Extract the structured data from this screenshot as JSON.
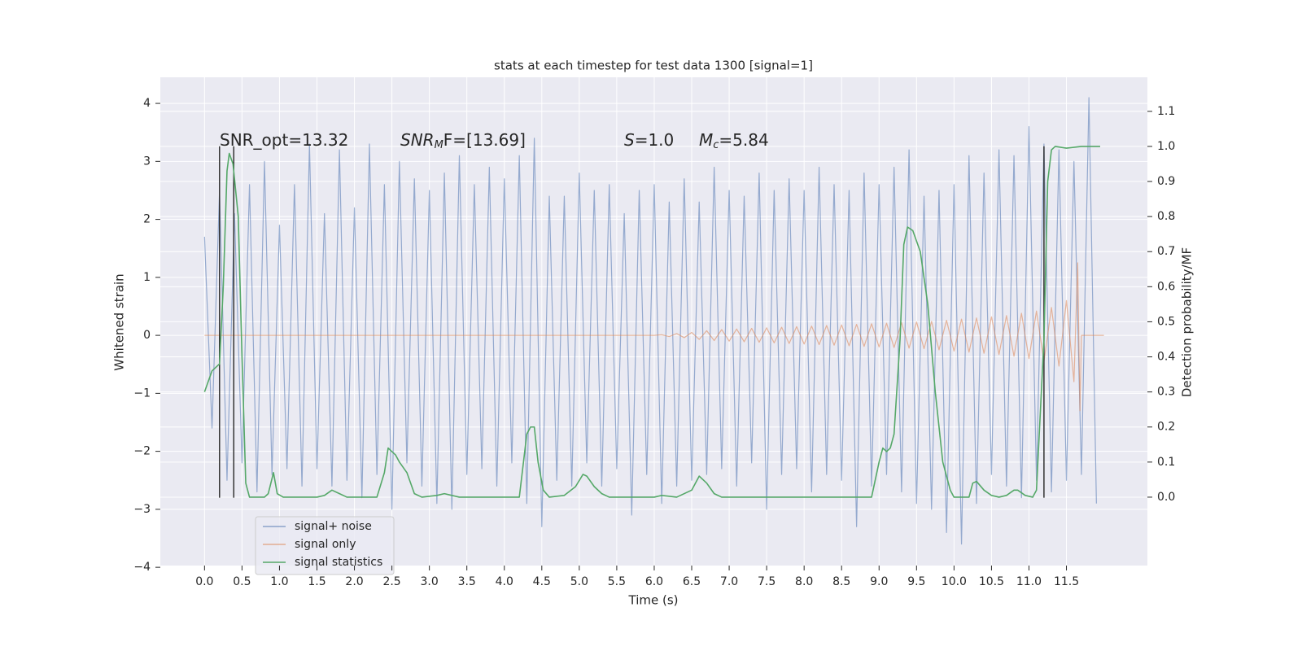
{
  "chart_data": {
    "type": "line",
    "title": "stats at each timestep for test data 1300 [signal=1]",
    "xlabel": "Time (s)",
    "ylabel": "Whitened strain",
    "y2label": "Detection probability/MF",
    "xlim": [
      -0.59,
      12.58
    ],
    "ylim": [
      -3.97,
      4.45
    ],
    "y2lim": [
      -0.195,
      1.197
    ],
    "xticks": [
      {
        "value": 0,
        "label": "0.0"
      },
      0.5,
      {
        "value": 1,
        "label": "1.0"
      },
      1.5,
      {
        "value": 2,
        "label": "2.0"
      },
      2.5,
      {
        "value": 3,
        "label": "3.0"
      },
      3.5,
      {
        "value": 4,
        "label": "4.0"
      },
      4.5,
      {
        "value": 5,
        "label": "5.0"
      },
      5.5,
      {
        "value": 6,
        "label": "6.0"
      },
      6.5,
      {
        "value": 7,
        "label": "7.0"
      },
      7.5,
      {
        "value": 8,
        "label": "8.0"
      },
      8.5,
      {
        "value": 9,
        "label": "9.0"
      },
      9.5,
      {
        "value": 10,
        "label": "10.0"
      },
      10.5,
      {
        "value": 11,
        "label": "11.0"
      },
      11.5
    ],
    "yticks": [
      {
        "value": -4,
        "label": "−4"
      },
      {
        "value": -3,
        "label": "−3"
      },
      {
        "value": -2,
        "label": "−2"
      },
      {
        "value": -1,
        "label": "−1"
      },
      0,
      1,
      2,
      3,
      4
    ],
    "y2ticks": [
      {
        "value": 0,
        "label": "0.0"
      },
      0.1,
      0.2,
      0.3,
      0.4,
      0.5,
      0.6,
      0.7,
      0.8,
      0.9,
      {
        "value": 1,
        "label": "1.0"
      },
      1.1
    ],
    "grid": true,
    "legend": "lower left",
    "annotations": [
      {
        "main": "SNR_opt=13.32"
      },
      {
        "main": "SNR",
        "sub": "M",
        "rest": "F=[13.69]"
      },
      {
        "main": "S",
        "rest": "=1.0"
      },
      {
        "main": "M",
        "sub": "c",
        "rest": "=5.84"
      }
    ],
    "vlines": {
      "x": [
        0.2,
        0.39,
        11.2
      ],
      "ymin": -2.8,
      "ymax": 3.26,
      "color": "#333333"
    },
    "series": [
      {
        "name": "signal+ noise",
        "color": "#4c72b0",
        "x": [
          0.0,
          0.1,
          0.2,
          0.3,
          0.4,
          0.5,
          0.6,
          0.7,
          0.8,
          0.9,
          1.0,
          1.1,
          1.2,
          1.3,
          1.4,
          1.5,
          1.6,
          1.7,
          1.8,
          1.9,
          2.0,
          2.1,
          2.2,
          2.3,
          2.4,
          2.5,
          2.6,
          2.7,
          2.8,
          2.9,
          3.0,
          3.1,
          3.2,
          3.3,
          3.4,
          3.5,
          3.6,
          3.7,
          3.8,
          3.9,
          4.0,
          4.1,
          4.2,
          4.3,
          4.4,
          4.5,
          4.6,
          4.7,
          4.8,
          4.9,
          5.0,
          5.1,
          5.2,
          5.3,
          5.4,
          5.5,
          5.6,
          5.7,
          5.8,
          5.9,
          6.0,
          6.1,
          6.2,
          6.3,
          6.4,
          6.5,
          6.6,
          6.7,
          6.8,
          6.9,
          7.0,
          7.1,
          7.2,
          7.3,
          7.4,
          7.5,
          7.6,
          7.7,
          7.8,
          7.9,
          8.0,
          8.1,
          8.2,
          8.3,
          8.4,
          8.5,
          8.6,
          8.7,
          8.8,
          8.9,
          9.0,
          9.1,
          9.2,
          9.3,
          9.4,
          9.5,
          9.6,
          9.7,
          9.8,
          9.9,
          10.0,
          10.1,
          10.2,
          10.3,
          10.4,
          10.5,
          10.6,
          10.7,
          10.8,
          10.9,
          11.0,
          11.1,
          11.2,
          11.3,
          11.4,
          11.5,
          11.6,
          11.7,
          11.8,
          11.9
        ],
        "values": [
          1.7,
          -1.6,
          2.5,
          -2.5,
          2.1,
          -2.2,
          2.6,
          -2.7,
          3.0,
          -2.4,
          1.9,
          -2.3,
          2.6,
          -2.6,
          3.3,
          -2.3,
          2.1,
          -2.6,
          3.2,
          -2.5,
          2.2,
          -2.8,
          3.3,
          -2.4,
          2.6,
          -3.0,
          3.0,
          -2.2,
          2.7,
          -2.6,
          2.5,
          -2.9,
          2.8,
          -3.0,
          3.1,
          -2.4,
          2.6,
          -2.3,
          2.9,
          -2.6,
          2.7,
          -2.2,
          3.1,
          -2.9,
          3.4,
          -3.3,
          2.4,
          -2.5,
          2.4,
          -2.6,
          2.8,
          -2.2,
          2.5,
          -2.6,
          2.6,
          -2.3,
          2.1,
          -3.1,
          2.5,
          -2.4,
          2.6,
          -2.9,
          2.3,
          -2.6,
          2.7,
          -2.5,
          2.3,
          -2.4,
          2.9,
          -2.3,
          2.5,
          -2.6,
          2.4,
          -2.2,
          2.8,
          -3.0,
          2.5,
          -2.4,
          2.7,
          -2.3,
          2.5,
          -2.7,
          2.9,
          -2.4,
          2.6,
          -2.5,
          2.5,
          -3.3,
          2.8,
          -2.6,
          2.6,
          -2.4,
          2.9,
          -2.7,
          3.2,
          -2.9,
          2.4,
          -3.0,
          2.5,
          -3.4,
          2.6,
          -3.6,
          3.1,
          -2.9,
          2.8,
          -2.4,
          3.2,
          -2.6,
          3.1,
          -2.8,
          3.6,
          -2.5,
          3.3,
          -2.7,
          3.2,
          -2.5,
          3.0,
          -2.4,
          4.1,
          -2.9
        ]
      },
      {
        "name": "signal only",
        "color": "#dd8452",
        "x": [
          0.0,
          6.0,
          6.1,
          6.2,
          6.3,
          6.4,
          6.5,
          6.6,
          6.7,
          6.8,
          6.9,
          7.0,
          7.1,
          7.2,
          7.3,
          7.4,
          7.5,
          7.6,
          7.7,
          7.8,
          7.9,
          8.0,
          8.1,
          8.2,
          8.3,
          8.4,
          8.5,
          8.6,
          8.7,
          8.8,
          8.9,
          9.0,
          9.1,
          9.2,
          9.3,
          9.4,
          9.5,
          9.6,
          9.7,
          9.8,
          9.9,
          10.0,
          10.1,
          10.2,
          10.3,
          10.4,
          10.5,
          10.6,
          10.7,
          10.8,
          10.9,
          11.0,
          11.1,
          11.2,
          11.3,
          11.4,
          11.5,
          11.6,
          11.65,
          11.68,
          11.7,
          12.0
        ],
        "values": [
          0,
          0,
          0.01,
          -0.02,
          0.03,
          -0.04,
          0.05,
          -0.07,
          0.08,
          -0.09,
          0.1,
          -0.1,
          0.11,
          -0.11,
          0.12,
          -0.12,
          0.13,
          -0.13,
          0.14,
          -0.14,
          0.15,
          -0.15,
          0.16,
          -0.16,
          0.17,
          -0.17,
          0.18,
          -0.18,
          0.19,
          -0.19,
          0.2,
          -0.2,
          0.21,
          -0.21,
          0.22,
          -0.22,
          0.23,
          -0.23,
          0.24,
          -0.25,
          0.26,
          -0.27,
          0.28,
          -0.29,
          0.3,
          -0.31,
          0.32,
          -0.33,
          0.34,
          -0.36,
          0.38,
          -0.4,
          0.42,
          -0.45,
          0.48,
          -0.53,
          0.6,
          -0.8,
          1.25,
          -1.3,
          0,
          0
        ]
      },
      {
        "name": "signal statistics",
        "color": "#55a868",
        "axis": "y2",
        "x": [
          0.0,
          0.1,
          0.2,
          0.25,
          0.3,
          0.33,
          0.38,
          0.45,
          0.5,
          0.55,
          0.6,
          0.7,
          0.8,
          0.85,
          0.92,
          0.97,
          1.05,
          1.5,
          1.6,
          1.7,
          1.8,
          1.9,
          2.3,
          2.4,
          2.45,
          2.55,
          2.6,
          2.7,
          2.8,
          2.9,
          3.1,
          3.2,
          3.3,
          3.4,
          4.2,
          4.3,
          4.35,
          4.4,
          4.45,
          4.52,
          4.6,
          4.8,
          4.95,
          5.05,
          5.1,
          5.2,
          5.3,
          5.4,
          6.0,
          6.1,
          6.3,
          6.5,
          6.6,
          6.7,
          6.8,
          6.9,
          8.9,
          9.0,
          9.05,
          9.1,
          9.15,
          9.2,
          9.28,
          9.33,
          9.38,
          9.45,
          9.55,
          9.65,
          9.75,
          9.85,
          9.95,
          10.0,
          10.2,
          10.25,
          10.3,
          10.4,
          10.5,
          10.6,
          10.7,
          10.8,
          10.85,
          10.95,
          11.05,
          11.1,
          11.2,
          11.25,
          11.3,
          11.35,
          11.5,
          11.7,
          11.95
        ],
        "values": [
          0.3,
          0.36,
          0.38,
          0.6,
          0.93,
          0.98,
          0.95,
          0.8,
          0.4,
          0.04,
          0.0,
          0.0,
          0.0,
          0.01,
          0.07,
          0.01,
          0.0,
          0.0,
          0.005,
          0.02,
          0.01,
          0.0,
          0.0,
          0.07,
          0.14,
          0.12,
          0.1,
          0.07,
          0.01,
          0.0,
          0.005,
          0.01,
          0.005,
          0.0,
          0.0,
          0.18,
          0.2,
          0.2,
          0.1,
          0.02,
          0.0,
          0.005,
          0.03,
          0.065,
          0.06,
          0.03,
          0.01,
          0.0,
          0.0,
          0.005,
          0.0,
          0.02,
          0.06,
          0.04,
          0.01,
          0.0,
          0.0,
          0.1,
          0.14,
          0.13,
          0.14,
          0.18,
          0.45,
          0.72,
          0.77,
          0.76,
          0.7,
          0.55,
          0.3,
          0.1,
          0.02,
          0.0,
          0.0,
          0.04,
          0.045,
          0.02,
          0.005,
          0.0,
          0.005,
          0.02,
          0.02,
          0.005,
          0.0,
          0.02,
          0.45,
          0.9,
          0.99,
          1.0,
          0.995,
          1.0,
          1.0
        ]
      }
    ]
  }
}
